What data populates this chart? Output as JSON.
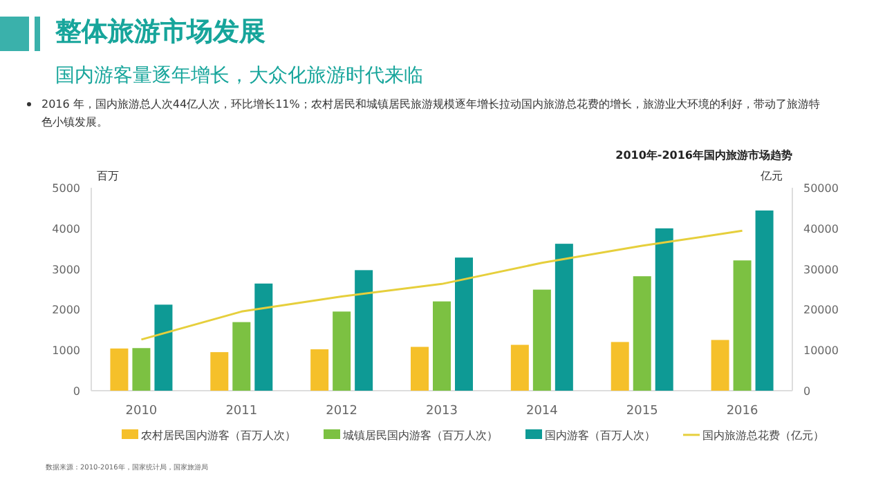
{
  "chart_data": {
    "type": "bar",
    "title": "整体旅游市场发展",
    "subtitle": "国内游客量逐年增长，大众化旅游时代来临",
    "annotations": [
      "2016 年，国内旅游总人次44亿人次，环比增长11%；农村居民和城镇居民旅游规模逐年增长拉动国内旅游总花费的增长，旅游业大环境的利好，带动了旅游特色小镇发展。",
      "2010年-2016年国内旅游市场趋势",
      "数据来源：2010-2016年，国家统计局，国家旅游局"
    ],
    "categories": [
      "2010",
      "2011",
      "2012",
      "2013",
      "2014",
      "2015",
      "2016"
    ],
    "series": [
      {
        "name": "农村居民国内游客（百万人次）",
        "color": "#f5c02a",
        "values": [
          1040,
          950,
          1020,
          1080,
          1130,
          1200,
          1250
        ]
      },
      {
        "name": "城镇居民国内游客（百万人次）",
        "color": "#7cc142",
        "values": [
          1050,
          1690,
          1950,
          2200,
          2490,
          2820,
          3210
        ]
      },
      {
        "name": "国内游客（百万人次）",
        "color": "#0e9a95",
        "values": [
          2120,
          2640,
          2970,
          3280,
          3620,
          4000,
          4440
        ]
      },
      {
        "name": "国内旅游总花费（亿元）",
        "type": "line",
        "axis": "y2",
        "color": "#e6cf3c",
        "values": [
          12600,
          19500,
          23200,
          26300,
          31500,
          35700,
          39400
        ]
      }
    ],
    "ylabel": "百万",
    "y2label": "亿元",
    "ylim": [
      0,
      5000
    ],
    "yticks": [
      0,
      1000,
      2000,
      3000,
      4000,
      5000
    ],
    "y2lim": [
      0,
      50000
    ],
    "y2ticks": [
      0,
      10000,
      20000,
      30000,
      40000,
      50000
    ],
    "grid": false,
    "legend": "bottom"
  }
}
